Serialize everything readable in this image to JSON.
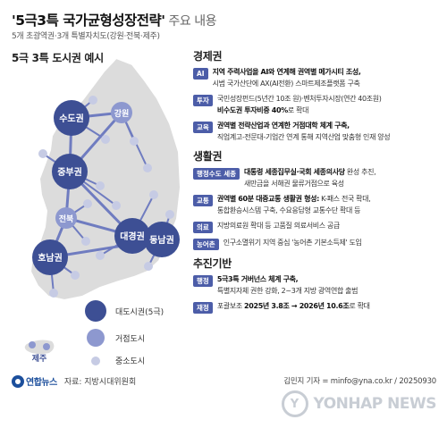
{
  "header": {
    "title_main": "'5극3특 국가균형성장전략'",
    "title_sub": " 주요 내용",
    "subtitle": "5개 초광역권·3개 특별자치도(강원·전북·제주)"
  },
  "map": {
    "heading": "5극 3특 도시권 예시",
    "regions": [
      {
        "name": "수도권",
        "size": "large"
      },
      {
        "name": "강원",
        "size": "medium"
      },
      {
        "name": "중부권",
        "size": "large"
      },
      {
        "name": "전북",
        "size": "medium"
      },
      {
        "name": "대경권",
        "size": "large"
      },
      {
        "name": "호남권",
        "size": "large"
      },
      {
        "name": "동남권",
        "size": "large"
      },
      {
        "name": "제주",
        "size": "small"
      }
    ],
    "legend": [
      {
        "label": "대도시권(5극)",
        "color": "#3d4f94"
      },
      {
        "label": "거점도시",
        "color": "#8d98cf"
      },
      {
        "label": "중소도시",
        "color": "#c6cbe4"
      }
    ],
    "colors": {
      "land": "#dcdcdc",
      "large": "#3d4f94",
      "medium": "#8d98cf",
      "small": "#c6cbe4",
      "link": "#6f7cc0"
    }
  },
  "sections": [
    {
      "title": "경제권",
      "items": [
        {
          "tag": "AI",
          "lines": [
            [
              {
                "t": "지역 주력사업을 AI와 연계해 권역별 메가시티 조성,",
                "b": true
              }
            ],
            [
              {
                "t": "시범 국가산단에 AX(AI전환) 스마트제조플랫폼 구축",
                "b": false
              }
            ]
          ]
        },
        {
          "tag": "투자",
          "lines": [
            [
              {
                "t": "국민성장펀드(5년간 10조 원)·벤처투자시장(연간 40조원)",
                "b": false
              }
            ],
            [
              {
                "t": "비수도권 투자비중 40%",
                "b": true
              },
              {
                "t": "로 확대",
                "b": false
              }
            ]
          ]
        },
        {
          "tag": "교육",
          "lines": [
            [
              {
                "t": "권역별 전략산업과 연계한 거점대학 체계 구축,",
                "b": true
              }
            ],
            [
              {
                "t": "직업계고-전문대-기업간 연계 통해 지역산업 맞춤형 인재 양성",
                "b": false
              }
            ]
          ]
        }
      ]
    },
    {
      "title": "생활권",
      "items": [
        {
          "tag": "행정수도 세종",
          "lines": [
            [
              {
                "t": "대통령 세종집무실·국회 세종의사당",
                "b": true
              },
              {
                "t": " 완성 추진,",
                "b": false
              }
            ],
            [
              {
                "t": "새만금을 서해권 물류거점으로 육성",
                "b": false
              }
            ]
          ]
        },
        {
          "tag": "교통",
          "lines": [
            [
              {
                "t": "권역별 60분 대중교통 생활권 형성:",
                "b": true
              },
              {
                "t": " K-패스 전국 확대,",
                "b": false
              }
            ],
            [
              {
                "t": "통합환승시스템 구축, 수요응답형 교통수단 확대 등",
                "b": false
              }
            ]
          ]
        },
        {
          "tag": "의료",
          "lines": [
            [
              {
                "t": "지방의료원 확대 등 고품질 의료서비스 공급",
                "b": false
              }
            ]
          ]
        },
        {
          "tag": "농어촌",
          "lines": [
            [
              {
                "t": "인구소멸위기 지역 중심 '농어촌 기본소득제' 도입",
                "b": false
              }
            ]
          ]
        }
      ]
    },
    {
      "title": "추진기반",
      "items": [
        {
          "tag": "행정",
          "lines": [
            [
              {
                "t": "5극3특 거버넌스 체계 구축,",
                "b": true
              }
            ],
            [
              {
                "t": "특별지자체 권한 강화, 2~3개 지방 광역연합 출범",
                "b": false
              }
            ]
          ]
        },
        {
          "tag": "재정",
          "lines": [
            [
              {
                "t": "포괄보조 ",
                "b": false
              },
              {
                "t": "2025년 3.8조 → 2026년 10.6조",
                "b": true
              },
              {
                "t": "로 확대",
                "b": false
              }
            ]
          ]
        }
      ]
    }
  ],
  "footer": {
    "logo_text": "연합뉴스",
    "source": "자료: 지방시대위원회",
    "credit": "김민지 기자 = minfo@yna.co.kr / 20250930",
    "watermark": "YONHAP NEWS",
    "watermark_mark": "Y"
  }
}
